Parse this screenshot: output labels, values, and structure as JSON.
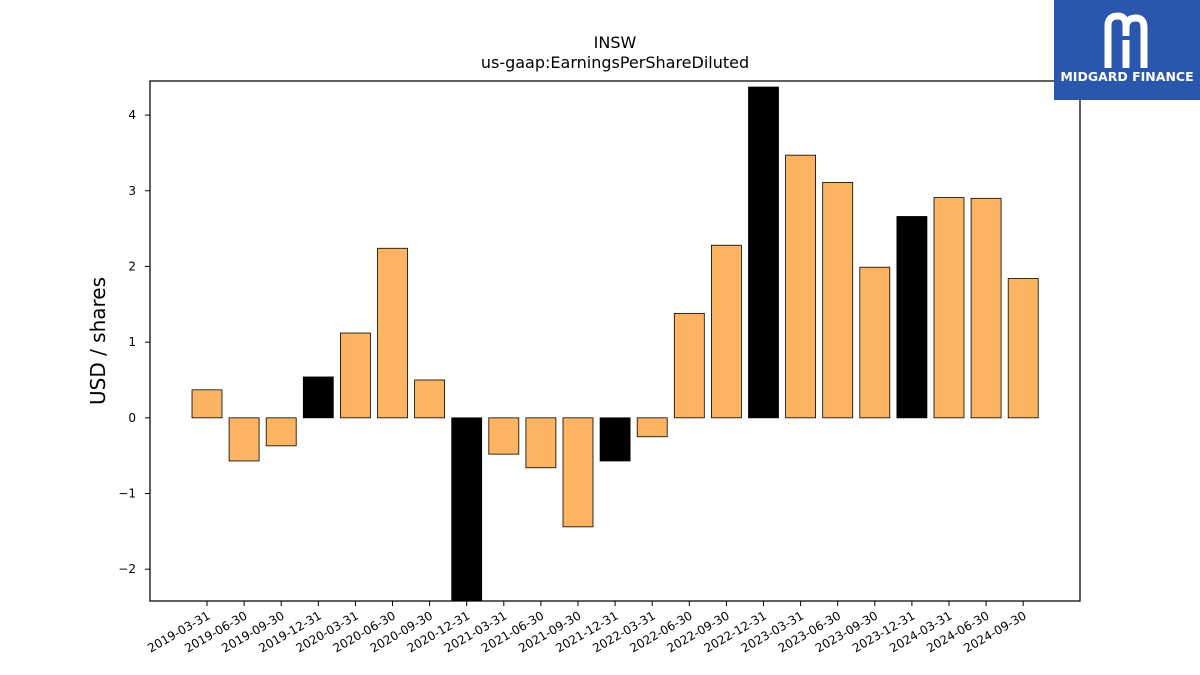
{
  "chart_data": {
    "type": "bar",
    "title": "INSW",
    "subtitle": "us-gaap:EarningsPerShareDiluted",
    "ylabel": "USD / shares",
    "xlabel": "",
    "ylim": [
      -2.42,
      4.45
    ],
    "yticks": [
      -2,
      -1,
      0,
      1,
      2,
      3,
      4
    ],
    "ytick_labels": [
      "−2",
      "−1",
      "0",
      "1",
      "2",
      "3",
      "4"
    ],
    "grid": false,
    "categories": [
      "2019-03-31",
      "2019-06-30",
      "2019-09-30",
      "2019-12-31",
      "2020-03-31",
      "2020-06-30",
      "2020-09-30",
      "2020-12-31",
      "2021-03-31",
      "2021-06-30",
      "2021-09-30",
      "2021-12-31",
      "2022-03-31",
      "2022-06-30",
      "2022-09-30",
      "2022-12-31",
      "2023-03-31",
      "2023-06-30",
      "2023-09-30",
      "2023-12-31",
      "2024-03-31",
      "2024-06-30",
      "2024-09-30"
    ],
    "values": [
      0.37,
      -0.57,
      -0.37,
      0.54,
      1.12,
      2.24,
      0.5,
      -2.6,
      -0.48,
      -0.66,
      -1.44,
      -0.57,
      -0.25,
      1.38,
      2.28,
      4.37,
      3.47,
      3.11,
      1.99,
      2.66,
      2.91,
      2.9,
      1.84
    ],
    "bar_colors": [
      "#fdb462",
      "#fdb462",
      "#fdb462",
      "#000000",
      "#fdb462",
      "#fdb462",
      "#fdb462",
      "#000000",
      "#fdb462",
      "#fdb462",
      "#fdb462",
      "#000000",
      "#fdb462",
      "#fdb462",
      "#fdb462",
      "#000000",
      "#fdb462",
      "#fdb462",
      "#fdb462",
      "#000000",
      "#fdb462",
      "#fdb462",
      "#fdb462"
    ],
    "edge_color": "#000000"
  },
  "logo": {
    "text": "MIDGARD FINANCE",
    "background": "#2a56ad",
    "icon": "midgard-monogram-icon"
  }
}
